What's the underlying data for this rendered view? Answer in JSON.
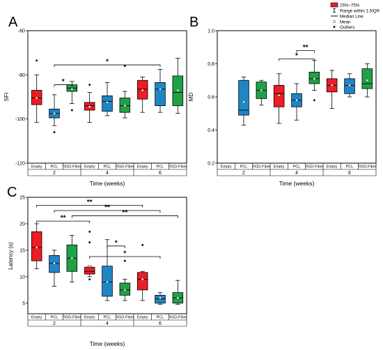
{
  "colors": {
    "Empty": "#ee1c24",
    "PCL": "#1f86c6",
    "RGD-Fiber": "#1ea246",
    "mean_marker": "#ffffff",
    "outlier": "#000000"
  },
  "legend": {
    "items": [
      "25%~75%",
      "Range within 1.5IQR",
      "Median Line",
      "Mean",
      "Outliers"
    ]
  },
  "chart_data": [
    {
      "panel": "A",
      "type": "box",
      "ylabel": "SFI",
      "xlabel": "Time (weeks)",
      "ylim": [
        -120,
        -60
      ],
      "yticks": [
        "-60",
        "-80",
        "-100",
        "-120"
      ],
      "groups": [
        "2",
        "4",
        "6"
      ],
      "categories": [
        "Empty",
        "PCL",
        "RGD-Fiber"
      ],
      "boxes": [
        {
          "group": "2",
          "category": "Empty",
          "min": -101.5,
          "q1": -93.5,
          "median": -90.5,
          "q3": -87,
          "max": -80,
          "mean": -90.5,
          "outliers": [
            -73.5
          ]
        },
        {
          "group": "2",
          "category": "PCL",
          "min": -103,
          "q1": -99.5,
          "median": -97.5,
          "q3": -95.5,
          "max": -89,
          "mean": -97.5,
          "outliers": [
            -106
          ]
        },
        {
          "group": "2",
          "category": "RGD-Fiber",
          "min": -93,
          "q1": -87.5,
          "median": -86,
          "q3": -84.5,
          "max": -83,
          "mean": -86.5,
          "outliers": [
            -96
          ]
        },
        {
          "group": "4",
          "category": "Empty",
          "min": -101.5,
          "q1": -96,
          "median": -94,
          "q3": -92.5,
          "max": -88,
          "mean": -94.5,
          "outliers": [
            -84.5
          ]
        },
        {
          "group": "4",
          "category": "PCL",
          "min": -98.5,
          "q1": -96.5,
          "median": -92,
          "q3": -89.5,
          "max": -83.5,
          "mean": -92.5,
          "outliers": []
        },
        {
          "group": "4",
          "category": "RGD-Fiber",
          "min": -99.5,
          "q1": -97,
          "median": -94,
          "q3": -90.5,
          "max": -87.5,
          "mean": -94,
          "outliers": [
            -76
          ]
        },
        {
          "group": "6",
          "category": "Empty",
          "min": -97,
          "q1": -91,
          "median": -86.5,
          "q3": -82.5,
          "max": -81,
          "mean": -87,
          "outliers": []
        },
        {
          "group": "6",
          "category": "PCL",
          "min": -97,
          "q1": -94,
          "median": -86.5,
          "q3": -83.5,
          "max": -77.5,
          "mean": -86.5,
          "outliers": []
        },
        {
          "group": "6",
          "category": "RGD-Fiber",
          "min": -97.5,
          "q1": -94,
          "median": -88,
          "q3": -80.5,
          "max": -72.5,
          "mean": -87,
          "outliers": []
        }
      ],
      "significance": [
        {
          "from": 1,
          "to": 2,
          "label": "*",
          "y": -84.5
        },
        {
          "from": 1,
          "to": 7,
          "label": "*",
          "y": -75.5
        }
      ]
    },
    {
      "panel": "B",
      "type": "box",
      "ylabel": "MD",
      "xlabel": "Time (weeks)",
      "ylim": [
        0.2,
        1.0
      ],
      "yticks": [
        "0.2",
        "0.4",
        "0.6",
        "0.8",
        "1.0"
      ],
      "groups": [
        "2",
        "4",
        "6"
      ],
      "categories": [
        "Empty",
        "PCL",
        "RGD-Fiber"
      ],
      "boxes": [
        {
          "group": "2",
          "category": "Empty",
          "min": null,
          "q1": null,
          "median": null,
          "q3": null,
          "max": null,
          "mean": null,
          "outliers": []
        },
        {
          "group": "2",
          "category": "PCL",
          "min": 0.43,
          "q1": 0.49,
          "median": 0.52,
          "q3": 0.7,
          "max": 0.72,
          "mean": 0.57,
          "outliers": []
        },
        {
          "group": "2",
          "category": "RGD-Fiber",
          "min": 0.55,
          "q1": 0.59,
          "median": 0.64,
          "q3": 0.69,
          "max": 0.7,
          "mean": 0.64,
          "outliers": []
        },
        {
          "group": "4",
          "category": "Empty",
          "min": 0.44,
          "q1": 0.54,
          "median": 0.62,
          "q3": 0.67,
          "max": 0.74,
          "mean": 0.61,
          "outliers": []
        },
        {
          "group": "4",
          "category": "PCL",
          "min": 0.46,
          "q1": 0.54,
          "median": 0.58,
          "q3": 0.62,
          "max": 0.68,
          "mean": 0.58,
          "outliers": []
        },
        {
          "group": "4",
          "category": "RGD-Fiber",
          "min": 0.64,
          "q1": 0.68,
          "median": 0.71,
          "q3": 0.75,
          "max": 0.82,
          "mean": 0.71,
          "outliers": [
            0.58
          ]
        },
        {
          "group": "6",
          "category": "Empty",
          "min": 0.53,
          "q1": 0.63,
          "median": 0.67,
          "q3": 0.71,
          "max": 0.76,
          "mean": 0.67,
          "outliers": []
        },
        {
          "group": "6",
          "category": "PCL",
          "min": 0.6,
          "q1": 0.62,
          "median": 0.67,
          "q3": 0.71,
          "max": 0.74,
          "mean": 0.67,
          "outliers": []
        },
        {
          "group": "6",
          "category": "RGD-Fiber",
          "min": 0.6,
          "q1": 0.65,
          "median": 0.68,
          "q3": 0.77,
          "max": 0.8,
          "mean": 0.7,
          "outliers": []
        }
      ],
      "significance": [
        {
          "from": 3,
          "to": 5,
          "label": "*",
          "y": 0.83
        },
        {
          "from": 4,
          "to": 5,
          "label": "**",
          "y": 0.88
        }
      ]
    },
    {
      "panel": "C",
      "type": "box",
      "ylabel": "Latency (s)",
      "xlabel": "Time (weeks)",
      "ylim": [
        3,
        25
      ],
      "yticks": [
        "5",
        "10",
        "15",
        "20",
        "25"
      ],
      "groups": [
        "2",
        "4",
        "6"
      ],
      "categories": [
        "Empty",
        "PCL",
        "RGD-Fiber"
      ],
      "boxes": [
        {
          "group": "2",
          "category": "Empty",
          "min": 11.5,
          "q1": 13,
          "median": 15.5,
          "q3": 18.5,
          "max": 20,
          "mean": 15.5,
          "outliers": []
        },
        {
          "group": "2",
          "category": "PCL",
          "min": 8.2,
          "q1": 10.8,
          "median": 12.5,
          "q3": 14,
          "max": 15,
          "mean": 12.5,
          "outliers": []
        },
        {
          "group": "2",
          "category": "RGD-Fiber",
          "min": 9,
          "q1": 11,
          "median": 13.5,
          "q3": 16,
          "max": 17.8,
          "mean": 13.5,
          "outliers": []
        },
        {
          "group": "4",
          "category": "Empty",
          "min": 10,
          "q1": 10.5,
          "median": 11,
          "q3": 11.8,
          "max": 12,
          "mean": 12,
          "outliers": [
            18.5,
            16.5,
            9.5
          ]
        },
        {
          "group": "4",
          "category": "PCL",
          "min": 5.5,
          "q1": 6.3,
          "median": 9,
          "q3": 12,
          "max": 17,
          "mean": 9,
          "outliers": []
        },
        {
          "group": "4",
          "category": "RGD-Fiber",
          "min": 5.5,
          "q1": 6.5,
          "median": 7.5,
          "q3": 8.8,
          "max": 9.5,
          "mean": 7.5,
          "outliers": [
            13
          ]
        },
        {
          "group": "6",
          "category": "Empty",
          "min": 5.5,
          "q1": 7.5,
          "median": 9.5,
          "q3": 10.8,
          "max": 11,
          "mean": 9.5,
          "outliers": [
            16
          ]
        },
        {
          "group": "6",
          "category": "PCL",
          "min": 4.8,
          "q1": 5,
          "median": 5.8,
          "q3": 6.5,
          "max": 7,
          "mean": 6,
          "outliers": []
        },
        {
          "group": "6",
          "category": "RGD-Fiber",
          "min": 4.8,
          "q1": 5,
          "median": 6,
          "q3": 7,
          "max": 9.3,
          "mean": 6,
          "outliers": []
        }
      ],
      "significance": [
        {
          "from": 0,
          "to": 6,
          "label": "**",
          "y": 23.5
        },
        {
          "from": 1,
          "to": 7,
          "label": "**",
          "y": 22.5
        },
        {
          "from": 2,
          "to": 8,
          "label": "**",
          "y": 21.5
        },
        {
          "from": 0,
          "to": 3,
          "label": "**",
          "y": 20.5
        },
        {
          "from": 4,
          "to": 5,
          "label": "*",
          "y": 15.8
        },
        {
          "from": 3,
          "to": 7,
          "label": "*",
          "y": 13.8
        }
      ]
    }
  ]
}
